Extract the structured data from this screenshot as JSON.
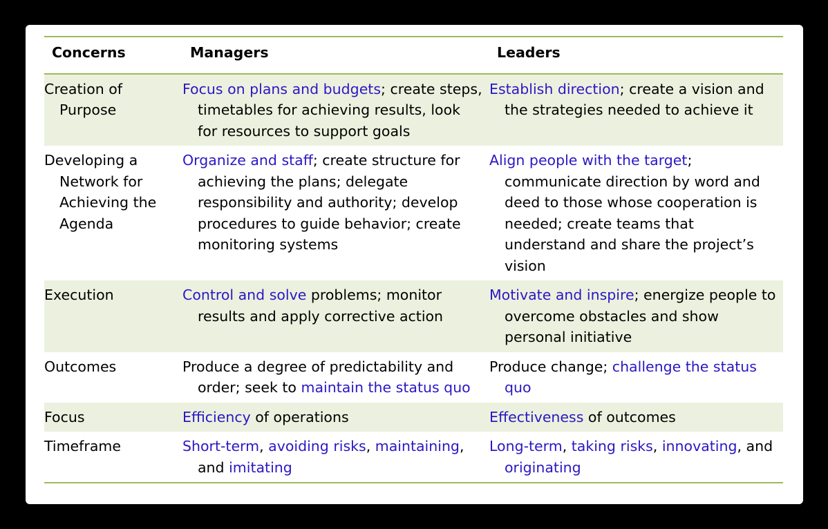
{
  "headers": {
    "concerns": "Concerns",
    "managers": "Managers",
    "leaders": "Leaders"
  },
  "colors": {
    "rule": "#9bbb59",
    "row_shade": "#ebf1de",
    "highlight_text": "#2b17c4"
  },
  "rows": [
    {
      "concern": "Creation of Purpose",
      "managers": [
        {
          "text": "Focus on plans and budgets",
          "hl": true
        },
        {
          "text": "; create steps, timetables for achieving results, look for resources to support goals",
          "hl": false
        }
      ],
      "leaders": [
        {
          "text": "Establish direction",
          "hl": true
        },
        {
          "text": "; create a vision and the strategies needed to achieve it",
          "hl": false
        }
      ]
    },
    {
      "concern": "Developing a Network for Achieving the Agenda",
      "managers": [
        {
          "text": "Organize and staff",
          "hl": true
        },
        {
          "text": "; create structure for achieving the plans; delegate responsibility and authority; develop procedures to guide behavior; create monitoring systems",
          "hl": false
        }
      ],
      "leaders": [
        {
          "text": "Align people with the target",
          "hl": true
        },
        {
          "text": "; communicate direction by word and deed to those whose cooperation is needed; create teams that understand and share the project’s vision",
          "hl": false
        }
      ]
    },
    {
      "concern": "Execution",
      "managers": [
        {
          "text": "Control and solve",
          "hl": true
        },
        {
          "text": " problems; monitor results and apply corrective action",
          "hl": false
        }
      ],
      "leaders": [
        {
          "text": "Motivate and inspire",
          "hl": true
        },
        {
          "text": "; energize people to overcome obstacles and show personal initiative",
          "hl": false
        }
      ]
    },
    {
      "concern": "Outcomes",
      "managers": [
        {
          "text": "Produce a degree of predictability and order; seek to ",
          "hl": false
        },
        {
          "text": "maintain the status quo",
          "hl": true
        }
      ],
      "leaders": [
        {
          "text": "Produce change; ",
          "hl": false
        },
        {
          "text": "challenge the status quo",
          "hl": true
        }
      ]
    },
    {
      "concern": "Focus",
      "managers": [
        {
          "text": "Efficiency",
          "hl": true
        },
        {
          "text": " of operations",
          "hl": false
        }
      ],
      "leaders": [
        {
          "text": "Effectiveness",
          "hl": true
        },
        {
          "text": " of outcomes",
          "hl": false
        }
      ]
    },
    {
      "concern": "Timeframe",
      "managers": [
        {
          "text": "Short-term",
          "hl": true
        },
        {
          "text": ", ",
          "hl": false
        },
        {
          "text": "avoiding risks",
          "hl": true
        },
        {
          "text": ", ",
          "hl": false
        },
        {
          "text": "maintaining",
          "hl": true
        },
        {
          "text": ", and ",
          "hl": false
        },
        {
          "text": "imitating",
          "hl": true
        }
      ],
      "leaders": [
        {
          "text": "Long-term",
          "hl": true
        },
        {
          "text": ", ",
          "hl": false
        },
        {
          "text": "taking risks",
          "hl": true
        },
        {
          "text": ", ",
          "hl": false
        },
        {
          "text": "innovating",
          "hl": true
        },
        {
          "text": ", and ",
          "hl": false
        },
        {
          "text": "originating",
          "hl": true
        }
      ]
    }
  ]
}
